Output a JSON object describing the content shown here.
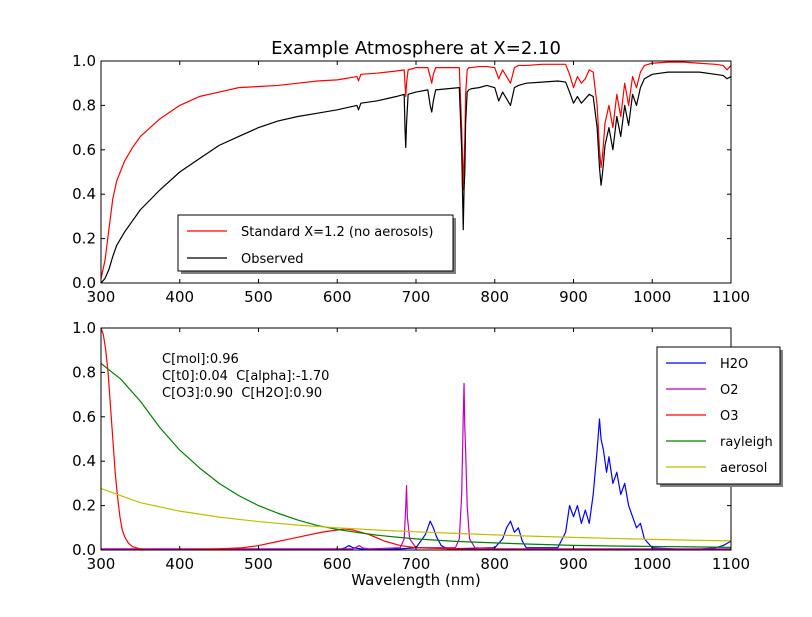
{
  "chart_data": [
    {
      "type": "line",
      "title": "Example Atmosphere at X=2.10",
      "xlabel": "",
      "ylabel": "",
      "xlim": [
        300,
        1100
      ],
      "ylim": [
        0,
        1.0
      ],
      "xticks": [
        300,
        400,
        500,
        600,
        700,
        800,
        900,
        1000,
        1100
      ],
      "yticks": [
        0.0,
        0.2,
        0.4,
        0.6,
        0.8,
        1.0
      ],
      "grid": false,
      "legend": "lower-left",
      "series": [
        {
          "name": "Standard X=1.2 (no aerosols)",
          "color": "#ff0000",
          "x": [
            300,
            305,
            310,
            315,
            320,
            330,
            340,
            350,
            375,
            400,
            425,
            450,
            475,
            500,
            525,
            550,
            575,
            600,
            625,
            627,
            630,
            650,
            675,
            685,
            686,
            687,
            688,
            690,
            700,
            715,
            718,
            720,
            722,
            725,
            740,
            755,
            758,
            760,
            761,
            762,
            763,
            765,
            767,
            770,
            780,
            790,
            800,
            805,
            810,
            815,
            820,
            825,
            830,
            840,
            860,
            880,
            890,
            895,
            900,
            905,
            910,
            915,
            920,
            925,
            930,
            933,
            935,
            937,
            940,
            945,
            950,
            955,
            960,
            965,
            970,
            975,
            980,
            985,
            990,
            1000,
            1020,
            1040,
            1060,
            1080,
            1090,
            1095,
            1100
          ],
          "y": [
            0.02,
            0.1,
            0.24,
            0.38,
            0.46,
            0.55,
            0.61,
            0.66,
            0.74,
            0.8,
            0.84,
            0.86,
            0.88,
            0.885,
            0.89,
            0.9,
            0.91,
            0.915,
            0.93,
            0.91,
            0.94,
            0.945,
            0.955,
            0.96,
            0.9,
            0.84,
            0.9,
            0.96,
            0.97,
            0.97,
            0.93,
            0.9,
            0.94,
            0.97,
            0.97,
            0.97,
            0.7,
            0.42,
            0.55,
            0.64,
            0.85,
            0.96,
            0.97,
            0.97,
            0.975,
            0.975,
            0.97,
            0.92,
            0.96,
            0.93,
            0.9,
            0.97,
            0.98,
            0.98,
            0.985,
            0.985,
            0.985,
            0.94,
            0.88,
            0.93,
            0.9,
            0.92,
            0.96,
            0.95,
            0.8,
            0.6,
            0.52,
            0.58,
            0.72,
            0.8,
            0.7,
            0.85,
            0.75,
            0.9,
            0.8,
            0.93,
            0.88,
            0.95,
            0.98,
            0.99,
            0.995,
            0.995,
            0.99,
            0.985,
            0.98,
            0.96,
            0.98
          ]
        },
        {
          "name": "Observed",
          "color": "#000000",
          "x": [
            300,
            305,
            310,
            315,
            320,
            330,
            340,
            350,
            375,
            400,
            425,
            450,
            475,
            500,
            525,
            550,
            575,
            600,
            625,
            627,
            630,
            650,
            675,
            685,
            686,
            687,
            688,
            690,
            700,
            715,
            718,
            720,
            722,
            725,
            740,
            755,
            758,
            760,
            761,
            762,
            763,
            765,
            767,
            770,
            780,
            790,
            800,
            805,
            810,
            815,
            820,
            825,
            830,
            840,
            860,
            880,
            890,
            895,
            900,
            905,
            910,
            915,
            920,
            925,
            930,
            933,
            935,
            937,
            940,
            945,
            950,
            955,
            960,
            965,
            970,
            975,
            980,
            985,
            990,
            1000,
            1020,
            1040,
            1060,
            1080,
            1090,
            1095,
            1100
          ],
          "y": [
            0.0,
            0.02,
            0.06,
            0.12,
            0.17,
            0.23,
            0.28,
            0.33,
            0.42,
            0.5,
            0.56,
            0.62,
            0.66,
            0.7,
            0.73,
            0.75,
            0.765,
            0.78,
            0.8,
            0.78,
            0.81,
            0.82,
            0.84,
            0.85,
            0.7,
            0.61,
            0.72,
            0.85,
            0.86,
            0.87,
            0.8,
            0.77,
            0.82,
            0.87,
            0.875,
            0.88,
            0.6,
            0.24,
            0.42,
            0.5,
            0.72,
            0.86,
            0.87,
            0.875,
            0.88,
            0.89,
            0.88,
            0.82,
            0.86,
            0.83,
            0.8,
            0.88,
            0.89,
            0.9,
            0.905,
            0.91,
            0.905,
            0.86,
            0.81,
            0.84,
            0.81,
            0.83,
            0.85,
            0.84,
            0.7,
            0.52,
            0.44,
            0.5,
            0.62,
            0.7,
            0.6,
            0.75,
            0.66,
            0.8,
            0.71,
            0.85,
            0.8,
            0.88,
            0.92,
            0.94,
            0.95,
            0.95,
            0.95,
            0.94,
            0.935,
            0.92,
            0.93
          ]
        }
      ]
    },
    {
      "type": "line",
      "title": "",
      "xlabel": "Wavelength (nm)",
      "ylabel": "",
      "xlim": [
        300,
        1100
      ],
      "ylim": [
        0,
        1.0
      ],
      "xticks": [
        300,
        400,
        500,
        600,
        700,
        800,
        900,
        1000,
        1100
      ],
      "yticks": [
        0.0,
        0.2,
        0.4,
        0.6,
        0.8,
        1.0
      ],
      "grid": false,
      "legend": "top-right",
      "annotations": [
        "C[mol]:0.96",
        "C[t0]:0.04  C[alpha]:-1.70",
        "C[O3]:0.90  C[H2O]:0.90"
      ],
      "series": [
        {
          "name": "H2O",
          "color": "#0000ff",
          "x": [
            300,
            600,
            610,
            615,
            620,
            640,
            680,
            700,
            712,
            718,
            722,
            726,
            732,
            740,
            800,
            810,
            815,
            820,
            825,
            830,
            835,
            840,
            880,
            890,
            895,
            900,
            905,
            910,
            915,
            920,
            925,
            930,
            933,
            935,
            938,
            942,
            945,
            950,
            955,
            960,
            965,
            970,
            975,
            980,
            985,
            990,
            1000,
            1050,
            1080,
            1090,
            1095,
            1100
          ],
          "y": [
            0.0,
            0.0,
            0.01,
            0.02,
            0.01,
            0.0,
            0.005,
            0.01,
            0.07,
            0.13,
            0.1,
            0.06,
            0.02,
            0.005,
            0.01,
            0.05,
            0.1,
            0.13,
            0.08,
            0.1,
            0.04,
            0.01,
            0.01,
            0.08,
            0.2,
            0.15,
            0.2,
            0.12,
            0.18,
            0.12,
            0.25,
            0.45,
            0.59,
            0.5,
            0.45,
            0.35,
            0.42,
            0.3,
            0.35,
            0.25,
            0.3,
            0.2,
            0.15,
            0.1,
            0.12,
            0.05,
            0.01,
            0.0,
            0.01,
            0.02,
            0.03,
            0.04
          ]
        },
        {
          "name": "O2",
          "color": "#bf00bf",
          "x": [
            300,
            620,
            628,
            632,
            640,
            680,
            685,
            687,
            688,
            689,
            692,
            700,
            750,
            755,
            758,
            760,
            761,
            762,
            763,
            765,
            768,
            775,
            800,
            1100
          ],
          "y": [
            0.005,
            0.005,
            0.02,
            0.01,
            0.005,
            0.01,
            0.05,
            0.2,
            0.29,
            0.15,
            0.05,
            0.01,
            0.01,
            0.05,
            0.25,
            0.6,
            0.75,
            0.55,
            0.45,
            0.2,
            0.05,
            0.01,
            0.005,
            0.005
          ]
        },
        {
          "name": "O3",
          "color": "#ff0000",
          "x": [
            300,
            303,
            306,
            309,
            312,
            315,
            318,
            321,
            324,
            327,
            330,
            335,
            340,
            350,
            360,
            400,
            450,
            480,
            500,
            520,
            540,
            560,
            580,
            600,
            610,
            620,
            640,
            660,
            680,
            700,
            750,
            800,
            1100
          ],
          "y": [
            1.0,
            0.97,
            0.9,
            0.8,
            0.65,
            0.5,
            0.35,
            0.24,
            0.15,
            0.09,
            0.06,
            0.03,
            0.015,
            0.005,
            0.0,
            0.0,
            0.005,
            0.01,
            0.02,
            0.035,
            0.05,
            0.065,
            0.08,
            0.09,
            0.095,
            0.09,
            0.07,
            0.04,
            0.02,
            0.01,
            0.005,
            0.002,
            0.0
          ]
        },
        {
          "name": "rayleigh",
          "color": "#008000",
          "x": [
            300,
            325,
            350,
            375,
            400,
            425,
            450,
            475,
            500,
            525,
            550,
            575,
            600,
            625,
            650,
            675,
            700,
            750,
            800,
            850,
            900,
            950,
            1000,
            1050,
            1100
          ],
          "y": [
            0.84,
            0.77,
            0.67,
            0.55,
            0.45,
            0.37,
            0.3,
            0.245,
            0.2,
            0.165,
            0.135,
            0.11,
            0.093,
            0.079,
            0.067,
            0.058,
            0.05,
            0.039,
            0.032,
            0.026,
            0.021,
            0.018,
            0.016,
            0.014,
            0.012
          ]
        },
        {
          "name": "aerosol",
          "color": "#bfbf00",
          "x": [
            300,
            350,
            400,
            450,
            500,
            550,
            600,
            650,
            700,
            750,
            800,
            850,
            900,
            950,
            1000,
            1050,
            1100
          ],
          "y": [
            0.277,
            0.213,
            0.175,
            0.148,
            0.128,
            0.112,
            0.1,
            0.09,
            0.082,
            0.075,
            0.068,
            0.062,
            0.057,
            0.052,
            0.048,
            0.044,
            0.041
          ]
        }
      ]
    }
  ]
}
